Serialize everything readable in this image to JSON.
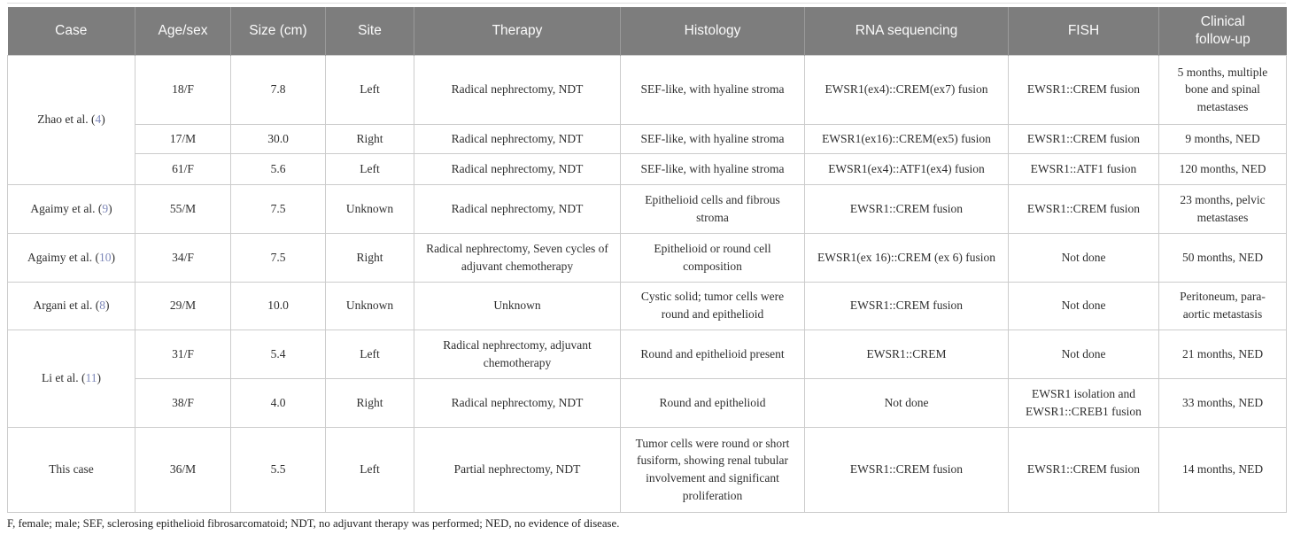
{
  "colors": {
    "header_bg": "#7d7d7d",
    "header_text": "#fbfbfb",
    "body_border": "#cccccc",
    "body_text": "#2f2f2f",
    "citation_link": "#7d87b9"
  },
  "table": {
    "columns": [
      {
        "key": "case",
        "label": "Case"
      },
      {
        "key": "age_sex",
        "label": "Age/sex"
      },
      {
        "key": "size_cm",
        "label": "Size (cm)"
      },
      {
        "key": "site",
        "label": "Site"
      },
      {
        "key": "therapy",
        "label": "Therapy"
      },
      {
        "key": "histology",
        "label": "Histology"
      },
      {
        "key": "rna_sequencing",
        "label": "RNA sequencing"
      },
      {
        "key": "fish",
        "label": "FISH"
      },
      {
        "key": "clinical_follow_up",
        "label": "Clinical\nfollow-up"
      }
    ],
    "rows": [
      {
        "case": {
          "label": "Zhao et al.",
          "cite": "4",
          "rowspan": 3
        },
        "age_sex": "18/F",
        "size_cm": "7.8",
        "site": "Left",
        "therapy": "Radical nephrectomy, NDT",
        "histology": "SEF-like, with hyaline stroma",
        "rna_sequencing": "EWSR1(ex4)::CREM(ex7) fusion",
        "fish": "EWSR1::CREM fusion",
        "clinical_follow_up": "5 months, multiple bone and spinal metastases"
      },
      {
        "age_sex": "17/M",
        "size_cm": "30.0",
        "site": "Right",
        "therapy": "Radical nephrectomy, NDT",
        "histology": "SEF-like, with hyaline stroma",
        "rna_sequencing": "EWSR1(ex16)::CREM(ex5) fusion",
        "fish": "EWSR1::CREM fusion",
        "clinical_follow_up": "9 months, NED"
      },
      {
        "age_sex": "61/F",
        "size_cm": "5.6",
        "site": "Left",
        "therapy": "Radical nephrectomy, NDT",
        "histology": "SEF-like, with hyaline stroma",
        "rna_sequencing": "EWSR1(ex4)::ATF1(ex4) fusion",
        "fish": "EWSR1::ATF1 fusion",
        "clinical_follow_up": "120 months, NED"
      },
      {
        "case": {
          "label": "Agaimy et al.",
          "cite": "9",
          "rowspan": 1
        },
        "age_sex": "55/M",
        "size_cm": "7.5",
        "site": "Unknown",
        "therapy": "Radical nephrectomy, NDT",
        "histology": "Epithelioid cells and fibrous stroma",
        "rna_sequencing": "EWSR1::CREM fusion",
        "fish": "EWSR1::CREM fusion",
        "clinical_follow_up": "23 months, pelvic metastases"
      },
      {
        "case": {
          "label": "Agaimy et al.",
          "cite": "10",
          "rowspan": 1
        },
        "age_sex": "34/F",
        "size_cm": "7.5",
        "site": "Right",
        "therapy": "Radical nephrectomy, Seven cycles of adjuvant chemotherapy",
        "histology": "Epithelioid or round cell composition",
        "rna_sequencing": "EWSR1(ex 16)::CREM (ex 6) fusion",
        "fish": "Not done",
        "clinical_follow_up": "50 months, NED"
      },
      {
        "case": {
          "label": "Argani et al.",
          "cite": "8",
          "rowspan": 1
        },
        "age_sex": "29/M",
        "size_cm": "10.0",
        "site": "Unknown",
        "therapy": "Unknown",
        "histology": "Cystic solid; tumor cells were round and epithelioid",
        "rna_sequencing": "EWSR1::CREM fusion",
        "fish": "Not done",
        "clinical_follow_up": "Peritoneum, para-aortic metastasis"
      },
      {
        "case": {
          "label": "Li et al.",
          "cite": "11",
          "rowspan": 2
        },
        "age_sex": "31/F",
        "size_cm": "5.4",
        "site": "Left",
        "therapy": "Radical nephrectomy, adjuvant chemotherapy",
        "histology": "Round and epithelioid present",
        "rna_sequencing": "EWSR1::CREM",
        "fish": "Not done",
        "clinical_follow_up": "21 months, NED"
      },
      {
        "age_sex": "38/F",
        "size_cm": "4.0",
        "site": "Right",
        "therapy": "Radical nephrectomy, NDT",
        "histology": "Round and epithelioid",
        "rna_sequencing": "Not done",
        "fish": "EWSR1 isolation and EWSR1::CREB1 fusion",
        "clinical_follow_up": "33 months, NED"
      },
      {
        "case": {
          "label": "This case",
          "cite": null,
          "rowspan": 1
        },
        "age_sex": "36/M",
        "size_cm": "5.5",
        "site": "Left",
        "therapy": "Partial nephrectomy, NDT",
        "histology": "Tumor cells were round or short fusiform, showing renal tubular involvement and significant proliferation",
        "rna_sequencing": "EWSR1::CREM fusion",
        "fish": "EWSR1::CREM fusion",
        "clinical_follow_up": "14 months, NED"
      }
    ]
  },
  "footnote": "F, female; male; SEF, sclerosing epithelioid fibrosarcomatoid; NDT, no adjuvant therapy was performed; NED, no evidence of disease."
}
